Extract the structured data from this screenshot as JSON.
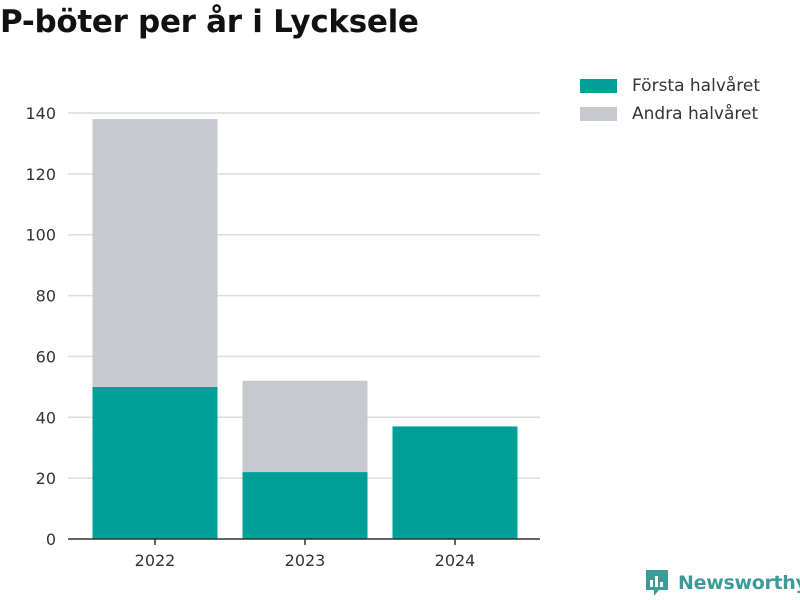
{
  "title": "P-böter per år i Lycksele",
  "colors": {
    "first_half": "#00a096",
    "second_half": "#c8c8d0",
    "grid": "#dcdcdc",
    "axis": "#333333",
    "brand": "#3d9b97"
  },
  "legend": {
    "first_half_label": "Första halvåret",
    "second_half_label": "Andra halvåret"
  },
  "brand": {
    "name": "Newsworthy",
    "icon": "bar-chart-logo-icon"
  },
  "chart_data": {
    "type": "bar",
    "stacked": true,
    "title": "P-böter per år i Lycksele",
    "xlabel": "",
    "ylabel": "",
    "categories": [
      "2022",
      "2023",
      "2024"
    ],
    "series": [
      {
        "name": "Första halvåret",
        "values": [
          50,
          22,
          37
        ]
      },
      {
        "name": "Andra halvåret",
        "values": [
          88,
          30,
          0
        ]
      }
    ],
    "ylim": [
      0,
      140
    ],
    "yticks": [
      0,
      20,
      40,
      60,
      80,
      100,
      120,
      140
    ],
    "grid": true,
    "legend_position": "top-right"
  }
}
